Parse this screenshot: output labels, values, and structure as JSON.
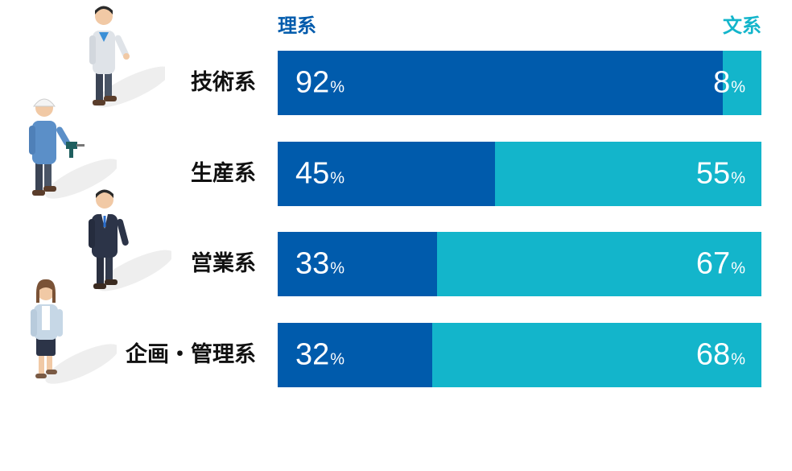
{
  "chart_data": {
    "type": "bar",
    "stacked": true,
    "orientation": "horizontal",
    "categories": [
      "技術系",
      "生産系",
      "営業系",
      "企画・管理系"
    ],
    "series": [
      {
        "name": "理系",
        "values": [
          92,
          45,
          33,
          32
        ],
        "color": "#005bac"
      },
      {
        "name": "文系",
        "values": [
          8,
          55,
          67,
          68
        ],
        "color": "#13b5cb"
      }
    ],
    "unit": "%",
    "xlim": [
      0,
      100
    ],
    "legend": "top"
  },
  "icons": [
    "worker-office-icon",
    "worker-helmet-drill-icon",
    "worker-suit-icon",
    "worker-woman-icon"
  ]
}
